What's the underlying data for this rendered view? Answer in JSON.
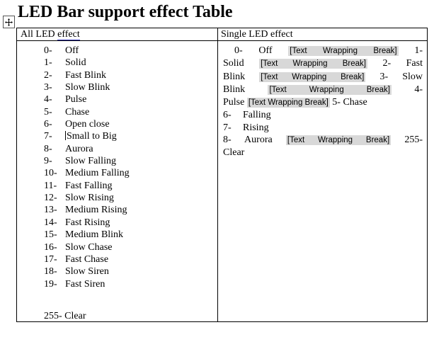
{
  "title": "LED Bar support effect Table",
  "colors": {
    "highlight": "#d8d8d8",
    "link_underline": "#3333bb",
    "border": "#000000"
  },
  "icons": {
    "table_move_handle": "move-cross-icon"
  },
  "table": {
    "header_left_prefix": "All LED ",
    "header_left_link": "effect",
    "header_right": "Single LED effect",
    "all_led_effects": [
      {
        "num": "0-",
        "name": "Off"
      },
      {
        "num": "1-",
        "name": "Solid"
      },
      {
        "num": "2-",
        "name": "Fast Blink"
      },
      {
        "num": "3-",
        "name": "Slow Blink"
      },
      {
        "num": "4-",
        "name": "Pulse"
      },
      {
        "num": "5-",
        "name": "Chase"
      },
      {
        "num": "6-",
        "name": "Open close"
      },
      {
        "num": "7-",
        "name": "Small to Big",
        "cursor": true
      },
      {
        "num": "8-",
        "name": "Aurora"
      },
      {
        "num": "9-",
        "name": "Slow Falling"
      },
      {
        "num": "10-",
        "name": "Medium Falling"
      },
      {
        "num": "11-",
        "name": "Fast Falling"
      },
      {
        "num": "12-",
        "name": "Slow Rising"
      },
      {
        "num": "13-",
        "name": "Medium Rising"
      },
      {
        "num": "14-",
        "name": "Fast Rising"
      },
      {
        "num": "15-",
        "name": "Medium Blink"
      },
      {
        "num": "16-",
        "name": "Slow Chase"
      },
      {
        "num": "17-",
        "name": "Fast Chase"
      },
      {
        "num": "18-",
        "name": "Slow Siren"
      },
      {
        "num": "19-",
        "name": "Fast Siren"
      }
    ],
    "all_led_footer": "255- Clear",
    "wrapping_break_label": "[Text Wrapping Break]",
    "single_led_lines": [
      {
        "align": "justify",
        "indent": true,
        "segments": [
          {
            "text": "0- Off ",
            "hl": false
          },
          {
            "text": "[Text Wrapping Break]",
            "hl": true
          },
          {
            "text": " 1-",
            "hl": false
          }
        ]
      },
      {
        "align": "justify",
        "segments": [
          {
            "text": "Solid ",
            "hl": false
          },
          {
            "text": "[Text Wrapping Break]",
            "hl": true
          },
          {
            "text": " 2- Fast",
            "hl": false
          }
        ]
      },
      {
        "align": "justify",
        "segments": [
          {
            "text": "Blink ",
            "hl": false
          },
          {
            "text": "[Text Wrapping Break]",
            "hl": true
          },
          {
            "text": " 3- Slow",
            "hl": false
          }
        ]
      },
      {
        "align": "justify",
        "segments": [
          {
            "text": "Blink ",
            "hl": false
          },
          {
            "text": "[Text Wrapping Break]",
            "hl": true
          },
          {
            "text": " 4-",
            "hl": false
          }
        ]
      },
      {
        "align": "left",
        "segments": [
          {
            "text": "Pulse ",
            "hl": false
          },
          {
            "text": "[Text Wrapping Break]",
            "hl": true
          },
          {
            "text": " 5- Chase",
            "hl": false
          }
        ]
      },
      {
        "align": "tab",
        "num": "6-",
        "name": "Falling"
      },
      {
        "align": "tab",
        "num": "7-",
        "name": "Rising"
      },
      {
        "align": "justify",
        "segments": [
          {
            "text": "8- Aurora ",
            "hl": false
          },
          {
            "text": "[Text Wrapping Break]",
            "hl": true
          },
          {
            "text": " 255-",
            "hl": false
          }
        ]
      },
      {
        "align": "left",
        "segments": [
          {
            "text": "Clear",
            "hl": false
          }
        ]
      }
    ]
  }
}
